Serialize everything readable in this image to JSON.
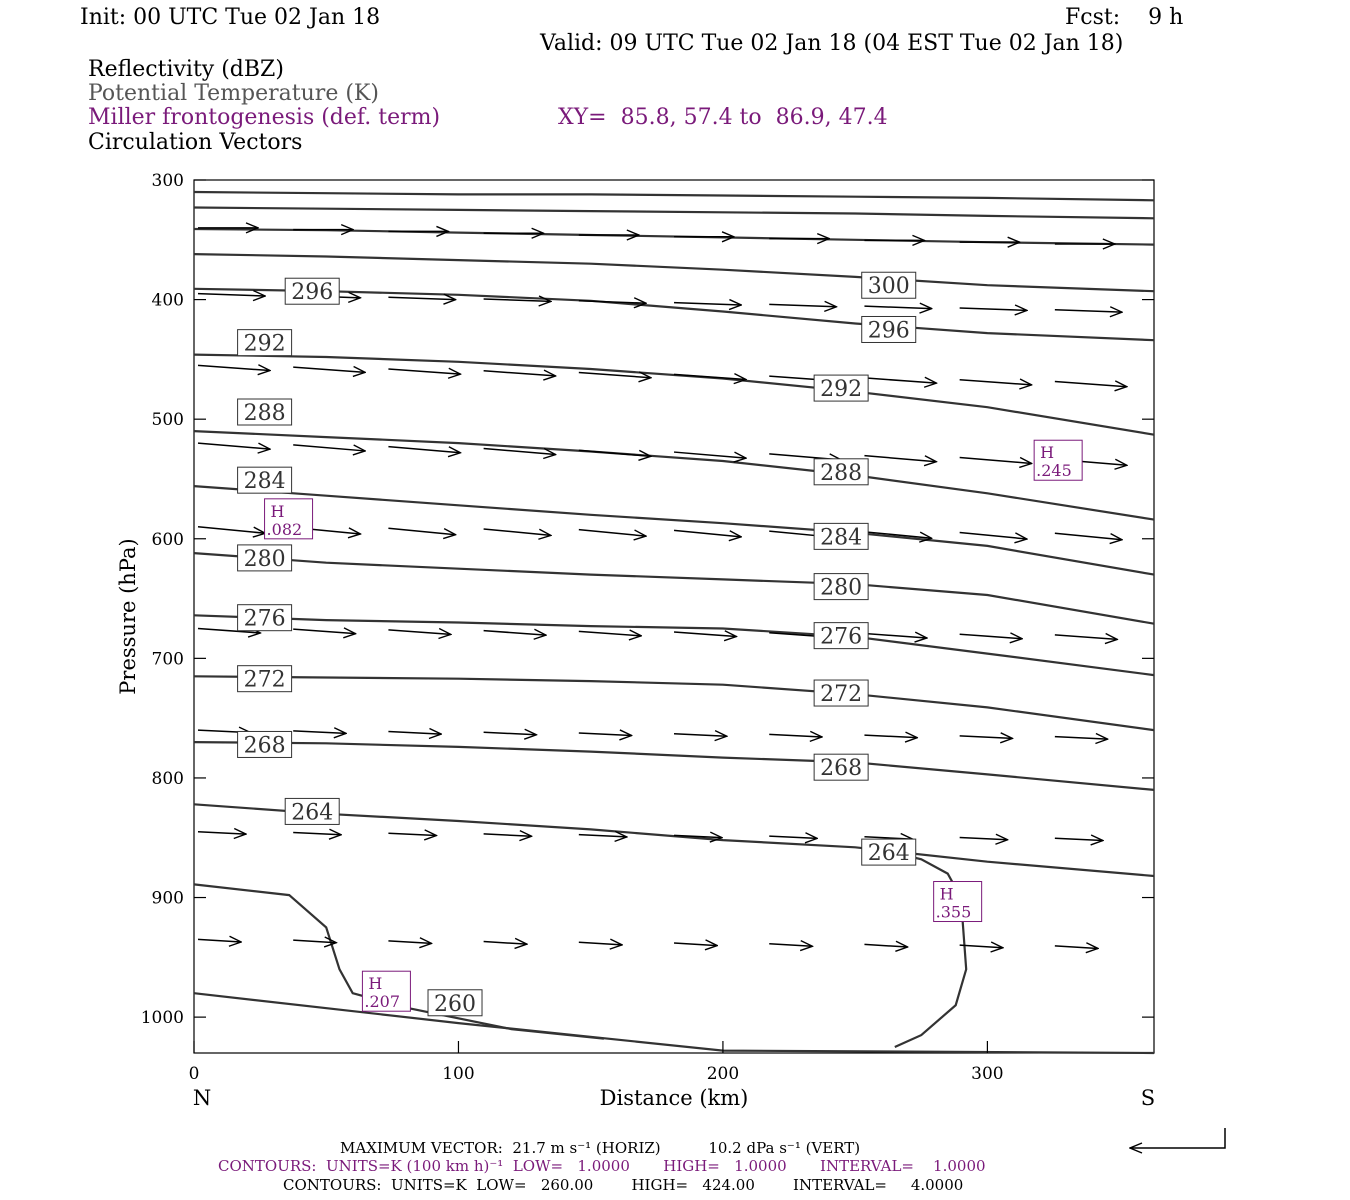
{
  "header": {
    "init": "Init: 00 UTC Tue 02 Jan 18",
    "fcst": "Fcst:    9 h",
    "valid": "Valid: 09 UTC Tue 02 Jan 18 (04 EST Tue 02 Jan 18)"
  },
  "legend": {
    "reflectivity": "Reflectivity (dBZ)",
    "theta": "Potential Temperature (K)",
    "frontogenesis": "Miller frontogenesis (def. term)",
    "xy": "XY=  85.8, 57.4 to  86.9, 47.4",
    "circulation": "Circulation Vectors"
  },
  "footer": {
    "max_vector": "MAXIMUM VECTOR:  21.7 m s⁻¹ (HORIZ)          10.2 dPa s⁻¹ (VERT)",
    "contours_front": "CONTOURS:  UNITS=K (100 km h)⁻¹  LOW=   1.0000       HIGH=   1.0000       INTERVAL=    1.0000",
    "contours_theta": "CONTOURS:  UNITS=K  LOW=   260.00        HIGH=   424.00        INTERVAL=     4.0000"
  },
  "colors": {
    "theta": "#333333",
    "frontogenesis": "#7a1a7a",
    "vectors": "#000000"
  },
  "chart_data": {
    "type": "line",
    "title": "",
    "xlabel": "Distance (km)",
    "ylabel": "Pressure (hPa)",
    "xlim": [
      0,
      363
    ],
    "ylim": [
      1030,
      300
    ],
    "x_ticks": [
      "0",
      "100",
      "200",
      "300"
    ],
    "y_ticks": [
      "300",
      "400",
      "500",
      "600",
      "700",
      "800",
      "900",
      "1000"
    ],
    "x_end_labels": {
      "left": "N",
      "right": "S"
    },
    "theta_labels": [
      {
        "text": "296",
        "x": 36,
        "p": 393
      },
      {
        "text": "292",
        "x": 18,
        "p": 436
      },
      {
        "text": "288",
        "x": 18,
        "p": 494
      },
      {
        "text": "284",
        "x": 18,
        "p": 551
      },
      {
        "text": "280",
        "x": 18,
        "p": 616
      },
      {
        "text": "276",
        "x": 18,
        "p": 666
      },
      {
        "text": "272",
        "x": 18,
        "p": 717
      },
      {
        "text": "268",
        "x": 18,
        "p": 772
      },
      {
        "text": "264",
        "x": 36,
        "p": 828
      },
      {
        "text": "300",
        "x": 254,
        "p": 388
      },
      {
        "text": "296",
        "x": 254,
        "p": 425
      },
      {
        "text": "292",
        "x": 236,
        "p": 474
      },
      {
        "text": "288",
        "x": 236,
        "p": 544
      },
      {
        "text": "284",
        "x": 236,
        "p": 598
      },
      {
        "text": "280",
        "x": 236,
        "p": 640
      },
      {
        "text": "276",
        "x": 236,
        "p": 681
      },
      {
        "text": "272",
        "x": 236,
        "p": 729
      },
      {
        "text": "268",
        "x": 236,
        "p": 791
      },
      {
        "text": "264",
        "x": 254,
        "p": 862
      },
      {
        "text": "260",
        "x": 90,
        "p": 988
      }
    ],
    "theta_series": [
      {
        "name": "",
        "x": [
          0,
          50,
          100,
          150,
          200,
          250,
          300,
          363
        ],
        "p": [
          310,
          311,
          312,
          312,
          313,
          314,
          315,
          317
        ]
      },
      {
        "name": "",
        "x": [
          0,
          50,
          100,
          150,
          200,
          250,
          300,
          363
        ],
        "p": [
          323,
          324,
          325,
          326,
          327,
          328,
          330,
          332
        ]
      },
      {
        "name": "",
        "x": [
          0,
          50,
          100,
          150,
          200,
          250,
          300,
          363
        ],
        "p": [
          341,
          342,
          344,
          346,
          348,
          350,
          352,
          354
        ]
      },
      {
        "name": "",
        "x": [
          0,
          50,
          100,
          150,
          200,
          250,
          300,
          363
        ],
        "p": [
          362,
          364,
          367,
          370,
          375,
          381,
          388,
          393
        ]
      },
      {
        "name": "",
        "x": [
          0,
          50,
          100,
          150,
          200,
          250,
          300,
          363
        ],
        "p": [
          391,
          393,
          396,
          401,
          410,
          420,
          428,
          434
        ]
      },
      {
        "name": "",
        "x": [
          0,
          50,
          100,
          150,
          200,
          250,
          300,
          363
        ],
        "p": [
          446,
          448,
          452,
          458,
          466,
          477,
          490,
          513
        ]
      },
      {
        "name": "",
        "x": [
          0,
          50,
          100,
          150,
          200,
          250,
          300,
          363
        ],
        "p": [
          510,
          515,
          520,
          527,
          535,
          547,
          562,
          584
        ]
      },
      {
        "name": "",
        "x": [
          0,
          50,
          100,
          150,
          200,
          250,
          300,
          363
        ],
        "p": [
          556,
          564,
          572,
          580,
          587,
          595,
          606,
          630
        ]
      },
      {
        "name": "",
        "x": [
          0,
          50,
          100,
          150,
          200,
          250,
          300,
          363
        ],
        "p": [
          612,
          620,
          625,
          630,
          634,
          638,
          647,
          671
        ]
      },
      {
        "name": "",
        "x": [
          0,
          50,
          100,
          150,
          200,
          250,
          300,
          363
        ],
        "p": [
          664,
          668,
          670,
          673,
          675,
          682,
          696,
          714
        ]
      },
      {
        "name": "",
        "x": [
          0,
          50,
          100,
          150,
          200,
          250,
          300,
          363
        ],
        "p": [
          715,
          716,
          717,
          719,
          722,
          730,
          741,
          760
        ]
      },
      {
        "name": "",
        "x": [
          0,
          50,
          100,
          150,
          200,
          250,
          300,
          363
        ],
        "p": [
          770,
          771,
          774,
          778,
          783,
          787,
          797,
          810
        ]
      },
      {
        "name": "",
        "x": [
          0,
          50,
          100,
          150,
          200,
          250,
          300,
          363
        ],
        "p": [
          822,
          830,
          836,
          843,
          852,
          858,
          870,
          882
        ]
      },
      {
        "name": "",
        "x": [
          0,
          36,
          50,
          55,
          60,
          80,
          120,
          155
        ],
        "p": [
          889,
          898,
          925,
          960,
          980,
          992,
          1010,
          1018
        ]
      },
      {
        "name": "",
        "x": [
          0,
          100,
          200,
          363
        ],
        "p": [
          980,
          1005,
          1028,
          1030
        ]
      },
      {
        "name": "",
        "x": [
          260,
          275,
          285,
          290,
          292,
          288,
          275,
          265
        ],
        "p": [
          860,
          868,
          880,
          900,
          960,
          990,
          1015,
          1025
        ]
      }
    ],
    "fronto_maxima": [
      {
        "label": "H",
        "value": ".082",
        "x": 35,
        "p": 585
      },
      {
        "label": "H",
        "value": ".245",
        "x": 326,
        "p": 536
      },
      {
        "label": "H",
        "value": ".355",
        "x": 288,
        "p": 905
      },
      {
        "label": "H",
        "value": ".207",
        "x": 72,
        "p": 980
      }
    ],
    "vector_rows": [
      {
        "p": 340,
        "u": 25,
        "w": 0.0
      },
      {
        "p": 395,
        "u": 28,
        "w": 0.3
      },
      {
        "p": 455,
        "u": 30,
        "w": 0.6
      },
      {
        "p": 520,
        "u": 30,
        "w": 0.7
      },
      {
        "p": 590,
        "u": 28,
        "w": 0.8
      },
      {
        "p": 675,
        "u": 26,
        "w": 0.6
      },
      {
        "p": 760,
        "u": 22,
        "w": 0.4
      },
      {
        "p": 845,
        "u": 20,
        "w": 0.4
      },
      {
        "p": 935,
        "u": 18,
        "w": 0.5
      }
    ]
  }
}
